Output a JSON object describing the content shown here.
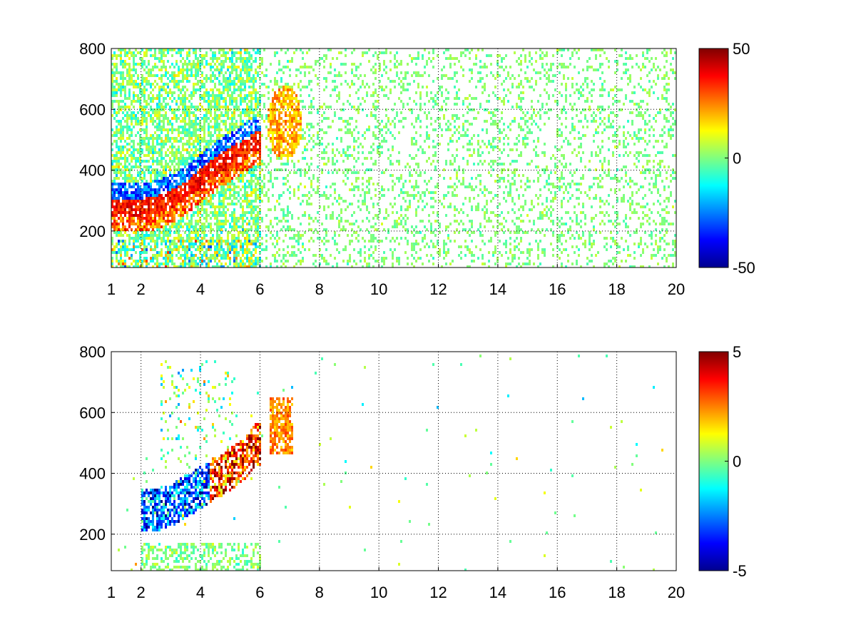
{
  "chart_data": [
    {
      "type": "heatmap",
      "panel": "top",
      "title": "",
      "xlabel": "",
      "ylabel": "",
      "xlim": [
        1,
        20
      ],
      "ylim": [
        80,
        800
      ],
      "x_ticks": [
        1,
        2,
        4,
        6,
        8,
        10,
        12,
        14,
        16,
        18,
        20
      ],
      "y_ticks": [
        200,
        400,
        600,
        800
      ],
      "grid": true,
      "colormap": "jet",
      "colorbar": {
        "clim": [
          -50,
          50
        ],
        "ticks": [
          50,
          0,
          -50
        ]
      },
      "features": [
        {
          "name": "ridge",
          "x": [
            2.0,
            2.5,
            3.0,
            3.5,
            4.0,
            4.5,
            5.0,
            5.5,
            5.8
          ],
          "y": [
            280,
            290,
            310,
            340,
            380,
            420,
            450,
            480,
            500
          ]
        },
        {
          "name": "low_band",
          "x": [
            1.0,
            6.0
          ],
          "y": [
            80,
            200
          ]
        }
      ]
    },
    {
      "type": "heatmap",
      "panel": "bottom",
      "title": "",
      "xlabel": "",
      "ylabel": "",
      "xlim": [
        1,
        20
      ],
      "ylim": [
        80,
        800
      ],
      "x_ticks": [
        1,
        2,
        4,
        6,
        8,
        10,
        12,
        14,
        16,
        18,
        20
      ],
      "y_ticks": [
        200,
        400,
        600,
        800
      ],
      "grid": true,
      "colormap": "jet",
      "colorbar": {
        "clim": [
          -5,
          5
        ],
        "ticks": [
          5,
          0,
          -5
        ]
      },
      "features": [
        {
          "name": "ridge",
          "x": [
            2.0,
            2.5,
            3.0,
            3.5,
            4.0,
            4.5,
            5.0,
            5.5,
            5.8
          ],
          "y": [
            280,
            285,
            300,
            330,
            360,
            390,
            420,
            460,
            500
          ]
        },
        {
          "name": "cluster",
          "x": [
            6.3,
            7.0
          ],
          "y": [
            480,
            640
          ]
        }
      ]
    }
  ]
}
